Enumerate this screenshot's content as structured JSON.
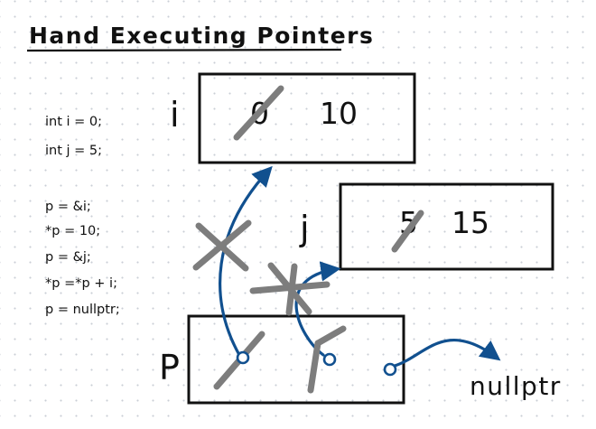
{
  "title": "Hand Executing Pointers",
  "code": {
    "declarations": [
      "int i = 0;",
      "int j = 5;"
    ],
    "statements": [
      "p = &i;",
      "*p = 10;",
      "p = &j;",
      "*p =*p + i;",
      "p = nullptr;"
    ]
  },
  "variables": {
    "i": {
      "label": "i",
      "old_value": "0",
      "new_value": "10"
    },
    "j": {
      "label": "j",
      "old_value": "5",
      "new_value": "15"
    },
    "p": {
      "label": "P"
    }
  },
  "target_label": "nullptr",
  "colors": {
    "ink": "#111111",
    "arrow": "#11508f",
    "strike": "#7d7d7d",
    "grid_dot": "#c9ced6"
  }
}
